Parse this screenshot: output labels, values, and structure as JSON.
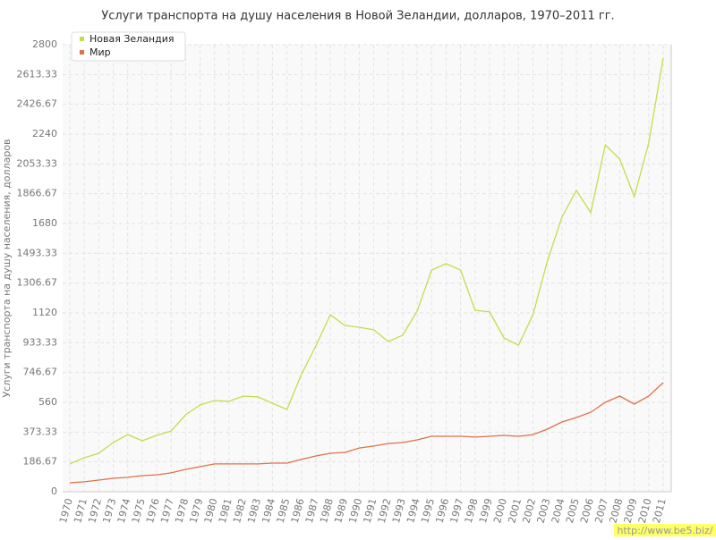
{
  "chart_data": {
    "type": "line",
    "title": "Услуги транспорта на душу населения в Новой Зеландии, долларов, 1970–2011 гг.",
    "y_label": "Услуги транспорта на душу населения, долларов",
    "categories": [
      "1970",
      "1971",
      "1972",
      "1973",
      "1974",
      "1975",
      "1976",
      "1977",
      "1978",
      "1979",
      "1980",
      "1981",
      "1982",
      "1983",
      "1984",
      "1985",
      "1986",
      "1987",
      "1988",
      "1989",
      "1990",
      "1991",
      "1992",
      "1993",
      "1994",
      "1995",
      "1996",
      "1997",
      "1998",
      "1999",
      "2000",
      "2001",
      "2002",
      "2003",
      "2004",
      "2005",
      "2006",
      "2007",
      "2008",
      "2009",
      "2010",
      "2011"
    ],
    "series": [
      {
        "name": "Новая Зеландия",
        "color": "#c6dc4a",
        "values": [
          174,
          213,
          241,
          308,
          358,
          319,
          353,
          381,
          482,
          543,
          571,
          566,
          599,
          594,
          554,
          515,
          734,
          913,
          1109,
          1042,
          1030,
          1014,
          941,
          980,
          1131,
          1389,
          1428,
          1389,
          1137,
          1126,
          963,
          918,
          1109,
          1445,
          1719,
          1887,
          1747,
          2173,
          2083,
          1848,
          2184,
          2716
        ]
      },
      {
        "name": "Мир",
        "color": "#e0704a",
        "values": [
          56,
          62,
          73,
          84,
          90,
          101,
          106,
          118,
          140,
          157,
          174,
          174,
          174,
          174,
          179,
          179,
          202,
          224,
          241,
          246,
          274,
          286,
          302,
          308,
          325,
          347,
          347,
          347,
          342,
          347,
          353,
          347,
          358,
          392,
          437,
          465,
          498,
          560,
          599,
          549,
          599,
          683
        ]
      }
    ],
    "ylim": [
      0,
      2800
    ],
    "yticks": [
      0,
      186.67,
      373.33,
      560,
      746.67,
      933.33,
      1120,
      1306.67,
      1493.33,
      1680,
      1866.67,
      2053.33,
      2240,
      2426.67,
      2613.33,
      2800
    ],
    "grid": true,
    "legend": "top-left",
    "watermark": "http://www.be5.biz/"
  }
}
